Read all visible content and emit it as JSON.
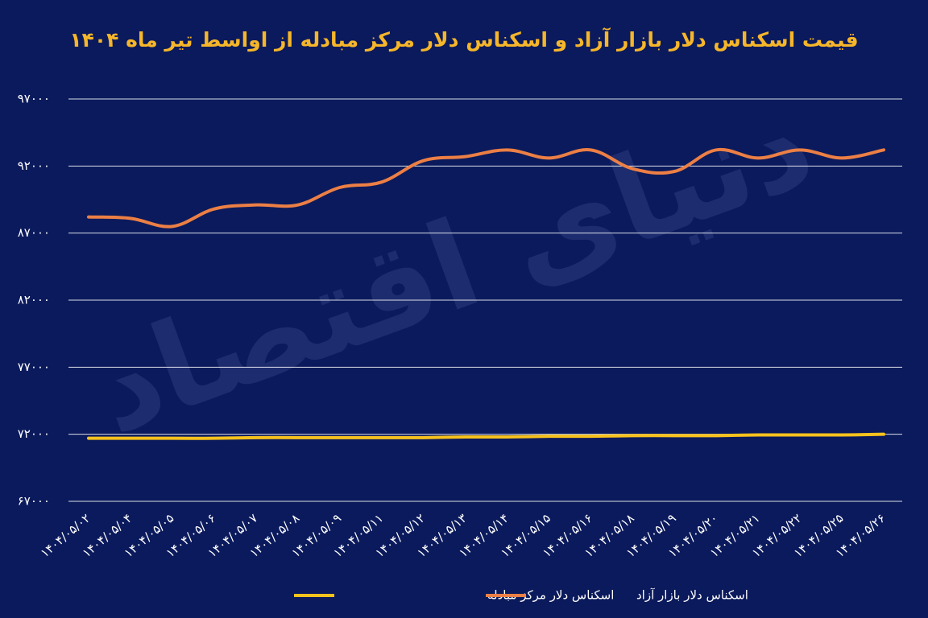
{
  "chart_data": {
    "type": "line",
    "title": "قیمت اسکناس دلار بازار آزاد و اسکناس دلار مرکز مبادله از اواسط تیر ماه ۱۴۰۴",
    "watermark": "دنیای اقتصاد",
    "categories": [
      "۱۴۰۴/۰۵/۰۲",
      "۱۴۰۴/۰۵/۰۴",
      "۱۴۰۴/۰۵/۰۵",
      "۱۴۰۴/۰۵/۰۶",
      "۱۴۰۴/۰۵/۰۷",
      "۱۴۰۴/۰۵/۰۸",
      "۱۴۰۴/۰۵/۰۹",
      "۱۴۰۴/۰۵/۱۱",
      "۱۴۰۴/۰۵/۱۲",
      "۱۴۰۴/۰۵/۱۳",
      "۱۴۰۴/۰۵/۱۴",
      "۱۴۰۴/۰۵/۱۵",
      "۱۴۰۴/۰۵/۱۶",
      "۱۴۰۴/۰۵/۱۸",
      "۱۴۰۴/۰۵/۱۹",
      "۱۴۰۴/۰۵/۲۰",
      "۱۴۰۴/۰۵/۲۱",
      "۱۴۰۴/۰۵/۲۲",
      "۱۴۰۴/۰۵/۲۵",
      "۱۴۰۴/۰۵/۲۶"
    ],
    "series": [
      {
        "name": "اسکناس دلار مرکز مبادله",
        "color": "#f7c21c",
        "values": [
          71700,
          71700,
          71700,
          71700,
          71750,
          71750,
          71750,
          71750,
          71750,
          71800,
          71800,
          71850,
          71850,
          71900,
          71900,
          71900,
          71950,
          71950,
          71950,
          72000
        ]
      },
      {
        "name": "اسکناس دلار بازار آزاد",
        "color": "#ec7f45",
        "values": [
          88200,
          88100,
          87500,
          88800,
          89100,
          89100,
          90400,
          90800,
          92400,
          92700,
          93200,
          92600,
          93200,
          91800,
          91600,
          93200,
          92600,
          93200,
          92600,
          93200
        ]
      }
    ],
    "ylim": [
      67000,
      97000
    ],
    "yticks": [
      {
        "value": 67000,
        "label": "۶۷۰۰۰"
      },
      {
        "value": 72000,
        "label": "۷۲۰۰۰"
      },
      {
        "value": 77000,
        "label": "۷۷۰۰۰"
      },
      {
        "value": 82000,
        "label": "۸۲۰۰۰"
      },
      {
        "value": 87000,
        "label": "۸۷۰۰۰"
      },
      {
        "value": 92000,
        "label": "۹۲۰۰۰"
      },
      {
        "value": 97000,
        "label": "۹۷۰۰۰"
      }
    ],
    "grid": true
  }
}
